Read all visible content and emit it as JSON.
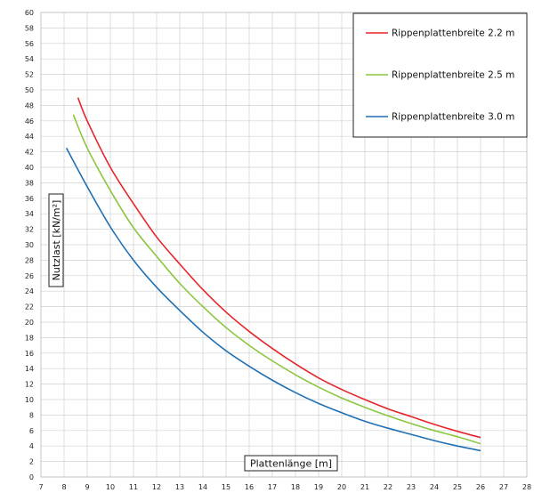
{
  "chart_data": {
    "type": "line",
    "xlabel": "Plattenlänge [m]",
    "ylabel": "Nutzlast [kN/m²]",
    "xlim": [
      7,
      28
    ],
    "ylim": [
      0,
      60
    ],
    "x_ticks": [
      7,
      8,
      9,
      10,
      11,
      12,
      13,
      14,
      15,
      16,
      17,
      18,
      19,
      20,
      21,
      22,
      23,
      24,
      25,
      26,
      27,
      28
    ],
    "y_ticks": [
      0,
      2,
      4,
      6,
      8,
      10,
      12,
      14,
      16,
      18,
      20,
      22,
      24,
      26,
      28,
      30,
      32,
      34,
      36,
      38,
      40,
      42,
      44,
      46,
      48,
      50,
      52,
      54,
      56,
      58,
      60
    ],
    "grid": true,
    "legend_position": "top-right",
    "series": [
      {
        "name": "Rippenplattenbreite 2.2 m",
        "color": "#e8242b",
        "x": [
          8.6,
          9,
          10,
          11,
          12,
          13,
          14,
          15,
          16,
          17,
          18,
          19,
          20,
          21,
          22,
          23,
          24,
          25,
          26
        ],
        "y": [
          49.0,
          46.0,
          40.0,
          35.3,
          31.0,
          27.5,
          24.2,
          21.3,
          18.8,
          16.6,
          14.6,
          12.8,
          11.3,
          10.0,
          8.8,
          7.8,
          6.8,
          5.9,
          5.1
        ]
      },
      {
        "name": "Rippenplattenbreite 2.5 m",
        "color": "#8cc63e",
        "x": [
          8.4,
          9,
          10,
          11,
          12,
          13,
          14,
          15,
          16,
          17,
          18,
          19,
          20,
          21,
          22,
          23,
          24,
          25,
          26
        ],
        "y": [
          46.8,
          42.5,
          37.0,
          32.2,
          28.5,
          25.0,
          22.0,
          19.3,
          17.0,
          15.0,
          13.2,
          11.6,
          10.2,
          9.0,
          7.9,
          6.9,
          6.0,
          5.2,
          4.3
        ]
      },
      {
        "name": "Rippenplattenbreite 3.0 m",
        "color": "#1f6fb5",
        "x": [
          8.1,
          9,
          10,
          11,
          12,
          13,
          14,
          15,
          16,
          17,
          18,
          19,
          20,
          21,
          22,
          23,
          24,
          25,
          26
        ],
        "y": [
          42.5,
          37.5,
          32.3,
          28.0,
          24.5,
          21.5,
          18.7,
          16.3,
          14.3,
          12.5,
          10.9,
          9.5,
          8.3,
          7.2,
          6.3,
          5.5,
          4.7,
          4.0,
          3.4
        ]
      }
    ]
  }
}
